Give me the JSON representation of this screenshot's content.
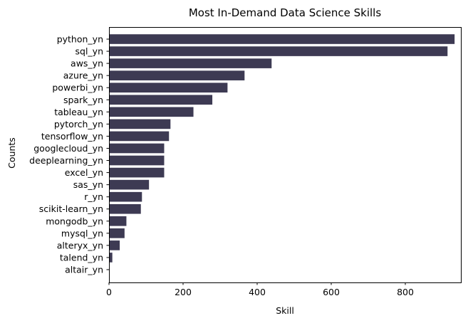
{
  "chart_data": {
    "type": "bar",
    "orientation": "horizontal",
    "title": "Most In-Demand Data Science Skills",
    "xlabel": "Skill",
    "ylabel": "Counts",
    "xlim": [
      0,
      950
    ],
    "xticks": [
      0,
      200,
      400,
      600,
      800
    ],
    "grid": false,
    "bar_color": "#3d3a53",
    "categories": [
      "python_yn",
      "sql_yn",
      "aws_yn",
      "azure_yn",
      "powerbi_yn",
      "spark_yn",
      "tableau_yn",
      "pytorch_yn",
      "tensorflow_yn",
      "googlecloud_yn",
      "deeplearning_yn",
      "excel_yn",
      "sas_yn",
      "r_yn",
      "scikit-learn_yn",
      "mongodb_yn",
      "mysql_yn",
      "alteryx_yn",
      "talend_yn",
      "altair_yn"
    ],
    "values": [
      933,
      914,
      439,
      366,
      320,
      279,
      228,
      166,
      162,
      149,
      149,
      149,
      108,
      89,
      86,
      47,
      42,
      29,
      9,
      0
    ]
  }
}
